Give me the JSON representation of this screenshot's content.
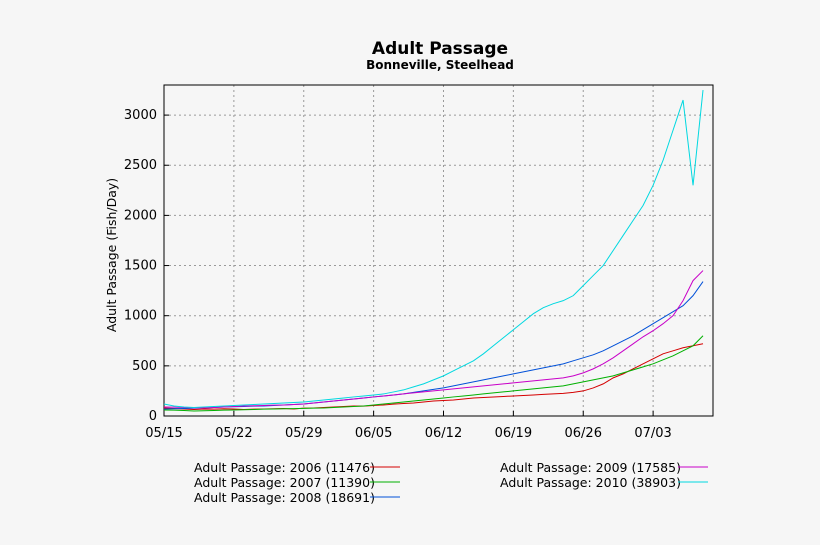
{
  "chart_data": {
    "type": "line",
    "title": "Adult Passage",
    "subtitle": "Bonneville, Steelhead",
    "xlabel": "",
    "ylabel": "Adult Passage (Fish/Day)",
    "x_tick_labels": [
      "05/15",
      "05/22",
      "05/29",
      "06/05",
      "06/12",
      "06/19",
      "06/26",
      "07/03"
    ],
    "x_start_label": "05/15",
    "x_days": 55,
    "ylim": [
      0,
      3300
    ],
    "yticks": [
      0,
      500,
      1000,
      1500,
      2000,
      2500,
      3000
    ],
    "grid": true,
    "legend_position": "bottom",
    "series": [
      {
        "name": "Adult Passage: 2006 (11476)",
        "color": "#d40000",
        "values": [
          80,
          75,
          70,
          65,
          70,
          68,
          72,
          70,
          65,
          68,
          70,
          72,
          75,
          70,
          78,
          80,
          85,
          90,
          95,
          100,
          98,
          105,
          110,
          118,
          125,
          130,
          140,
          150,
          155,
          160,
          170,
          180,
          185,
          190,
          195,
          200,
          205,
          210,
          215,
          220,
          225,
          235,
          250,
          280,
          320,
          380,
          420,
          470,
          520,
          570,
          620,
          650,
          680,
          700,
          720
        ]
      },
      {
        "name": "Adult Passage: 2007 (11390)",
        "color": "#00b000",
        "values": [
          60,
          58,
          55,
          50,
          52,
          55,
          58,
          60,
          62,
          65,
          68,
          70,
          72,
          74,
          76,
          78,
          80,
          85,
          90,
          95,
          100,
          110,
          120,
          130,
          140,
          150,
          160,
          170,
          180,
          190,
          200,
          210,
          220,
          230,
          240,
          250,
          260,
          270,
          280,
          290,
          300,
          320,
          340,
          360,
          380,
          400,
          430,
          460,
          490,
          520,
          560,
          600,
          650,
          700,
          800
        ]
      },
      {
        "name": "Adult Passage: 2008 (18691)",
        "color": "#0050d8",
        "values": [
          70,
          72,
          75,
          78,
          80,
          85,
          90,
          92,
          95,
          98,
          100,
          105,
          110,
          115,
          120,
          130,
          140,
          150,
          160,
          170,
          180,
          190,
          200,
          210,
          220,
          235,
          250,
          265,
          280,
          300,
          320,
          340,
          360,
          380,
          400,
          420,
          440,
          460,
          480,
          500,
          520,
          550,
          580,
          610,
          650,
          700,
          750,
          800,
          860,
          920,
          980,
          1040,
          1100,
          1200,
          1340
        ]
      },
      {
        "name": "Adult Passage: 2009 (17585)",
        "color": "#c800c8",
        "values": [
          90,
          88,
          85,
          82,
          80,
          85,
          90,
          95,
          100,
          102,
          105,
          108,
          110,
          115,
          120,
          130,
          140,
          150,
          160,
          170,
          180,
          190,
          200,
          210,
          220,
          230,
          240,
          250,
          260,
          270,
          280,
          290,
          300,
          310,
          320,
          330,
          340,
          350,
          360,
          370,
          380,
          400,
          430,
          470,
          520,
          580,
          650,
          720,
          790,
          850,
          920,
          1000,
          1150,
          1350,
          1450
        ]
      },
      {
        "name": "Adult Passage: 2010 (38903)",
        "color": "#00d8e0",
        "values": [
          120,
          100,
          90,
          85,
          90,
          95,
          100,
          105,
          110,
          115,
          120,
          125,
          130,
          135,
          140,
          150,
          160,
          170,
          180,
          190,
          200,
          210,
          220,
          240,
          260,
          290,
          320,
          360,
          400,
          450,
          500,
          550,
          620,
          700,
          780,
          860,
          940,
          1020,
          1080,
          1120,
          1150,
          1200,
          1300,
          1400,
          1500,
          1650,
          1800,
          1950,
          2100,
          2300,
          2550,
          2850,
          3150,
          2300,
          3250
        ]
      }
    ]
  }
}
